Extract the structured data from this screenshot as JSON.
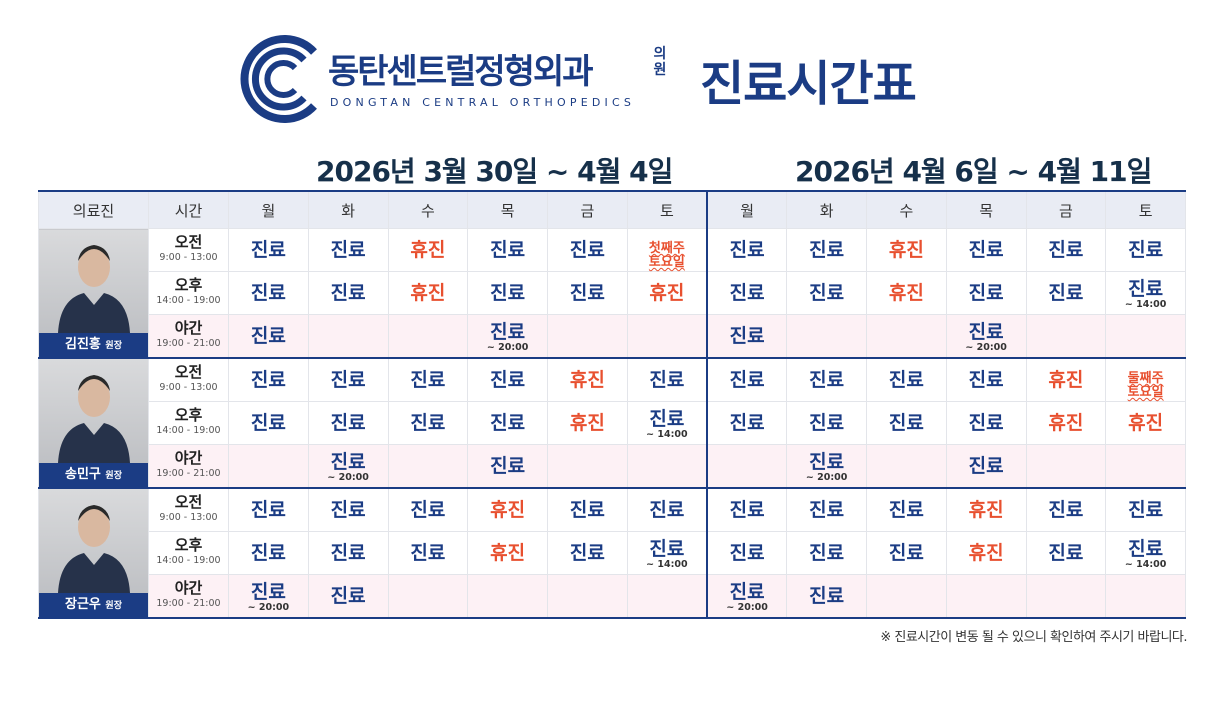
{
  "header": {
    "clinic_name": "동탄센트럴정형외과",
    "suffix": "의원",
    "english": "DONGTAN CENTRAL ORTHOPEDICS",
    "title": "진료시간표"
  },
  "weeks": [
    "2026년 3월 30일 ~ 4월 4일",
    "2026년 4월 6일 ~ 4월 11일"
  ],
  "columns": [
    "의료진",
    "시간"
  ],
  "days": [
    "월",
    "화",
    "수",
    "목",
    "금",
    "토"
  ],
  "doctors": [
    {
      "name": "김진홍",
      "role": "원장",
      "slots": [
        {
          "label": "오전",
          "time": "9:00 - 13:00",
          "cells": [
            {
              "text": "진료"
            },
            {
              "text": "진료"
            },
            {
              "text": "휴진",
              "color": "#e8502f"
            },
            {
              "text": "진료"
            },
            {
              "text": "진료"
            },
            {
              "text": "첫째주 토요일",
              "color": "#e8502f",
              "notice": true
            },
            {
              "text": "진료"
            },
            {
              "text": "진료"
            },
            {
              "text": "휴진",
              "color": "#e8502f"
            },
            {
              "text": "진료"
            },
            {
              "text": "진료"
            },
            {
              "text": "진료"
            }
          ]
        },
        {
          "label": "오후",
          "time": "14:00 - 19:00",
          "cells": [
            {
              "text": "진료"
            },
            {
              "text": "진료"
            },
            {
              "text": "휴진",
              "color": "#e8502f"
            },
            {
              "text": "진료"
            },
            {
              "text": "진료"
            },
            {
              "text": "휴진",
              "color": "#e8502f"
            },
            {
              "text": "진료"
            },
            {
              "text": "진료"
            },
            {
              "text": "휴진",
              "color": "#e8502f"
            },
            {
              "text": "진료"
            },
            {
              "text": "진료"
            },
            {
              "text": "진료",
              "note": "~ 14:00"
            }
          ]
        },
        {
          "label": "야간",
          "time": "19:00 - 21:00",
          "night": true,
          "cells": [
            {
              "text": "진료"
            },
            null,
            null,
            {
              "text": "진료",
              "note": "~ 20:00"
            },
            null,
            null,
            {
              "text": "진료"
            },
            null,
            null,
            {
              "text": "진료",
              "note": "~ 20:00"
            },
            null,
            null
          ]
        }
      ]
    },
    {
      "name": "송민구",
      "role": "원장",
      "slots": [
        {
          "label": "오전",
          "time": "9:00 - 13:00",
          "cells": [
            {
              "text": "진료"
            },
            {
              "text": "진료"
            },
            {
              "text": "진료"
            },
            {
              "text": "진료"
            },
            {
              "text": "휴진",
              "color": "#e8502f"
            },
            {
              "text": "진료"
            },
            {
              "text": "진료"
            },
            {
              "text": "진료"
            },
            {
              "text": "진료"
            },
            {
              "text": "진료"
            },
            {
              "text": "휴진",
              "color": "#e8502f"
            },
            {
              "text": "둘째주 토요일",
              "color": "#e8502f",
              "notice": true
            }
          ]
        },
        {
          "label": "오후",
          "time": "14:00 - 19:00",
          "cells": [
            {
              "text": "진료"
            },
            {
              "text": "진료"
            },
            {
              "text": "진료"
            },
            {
              "text": "진료"
            },
            {
              "text": "휴진",
              "color": "#e8502f"
            },
            {
              "text": "진료",
              "note": "~ 14:00"
            },
            {
              "text": "진료"
            },
            {
              "text": "진료"
            },
            {
              "text": "진료"
            },
            {
              "text": "진료"
            },
            {
              "text": "휴진",
              "color": "#e8502f"
            },
            {
              "text": "휴진",
              "color": "#e8502f"
            }
          ]
        },
        {
          "label": "야간",
          "time": "19:00 - 21:00",
          "night": true,
          "cells": [
            null,
            {
              "text": "진료",
              "note": "~ 20:00"
            },
            null,
            {
              "text": "진료"
            },
            null,
            null,
            null,
            {
              "text": "진료",
              "note": "~ 20:00"
            },
            null,
            {
              "text": "진료"
            },
            null,
            null
          ]
        }
      ]
    },
    {
      "name": "장근우",
      "role": "원장",
      "slots": [
        {
          "label": "오전",
          "time": "9:00 - 13:00",
          "cells": [
            {
              "text": "진료"
            },
            {
              "text": "진료"
            },
            {
              "text": "진료"
            },
            {
              "text": "휴진",
              "color": "#e8502f"
            },
            {
              "text": "진료"
            },
            {
              "text": "진료"
            },
            {
              "text": "진료"
            },
            {
              "text": "진료"
            },
            {
              "text": "진료"
            },
            {
              "text": "휴진",
              "color": "#e8502f"
            },
            {
              "text": "진료"
            },
            {
              "text": "진료"
            }
          ]
        },
        {
          "label": "오후",
          "time": "14:00 - 19:00",
          "cells": [
            {
              "text": "진료"
            },
            {
              "text": "진료"
            },
            {
              "text": "진료"
            },
            {
              "text": "휴진",
              "color": "#e8502f"
            },
            {
              "text": "진료"
            },
            {
              "text": "진료",
              "note": "~ 14:00"
            },
            {
              "text": "진료"
            },
            {
              "text": "진료"
            },
            {
              "text": "진료"
            },
            {
              "text": "휴진",
              "color": "#e8502f"
            },
            {
              "text": "진료"
            },
            {
              "text": "진료",
              "note": "~ 14:00"
            }
          ]
        },
        {
          "label": "야간",
          "time": "19:00 - 21:00",
          "night": true,
          "cells": [
            {
              "text": "진료",
              "note": "~ 20:00"
            },
            {
              "text": "진료"
            },
            null,
            null,
            null,
            null,
            {
              "text": "진료",
              "note": "~ 20:00"
            },
            {
              "text": "진료"
            },
            null,
            null,
            null,
            null
          ]
        }
      ]
    }
  ],
  "footnote": "※ 진료시간이 변동 될 수 있으니 확인하여 주시기 바랍니다."
}
